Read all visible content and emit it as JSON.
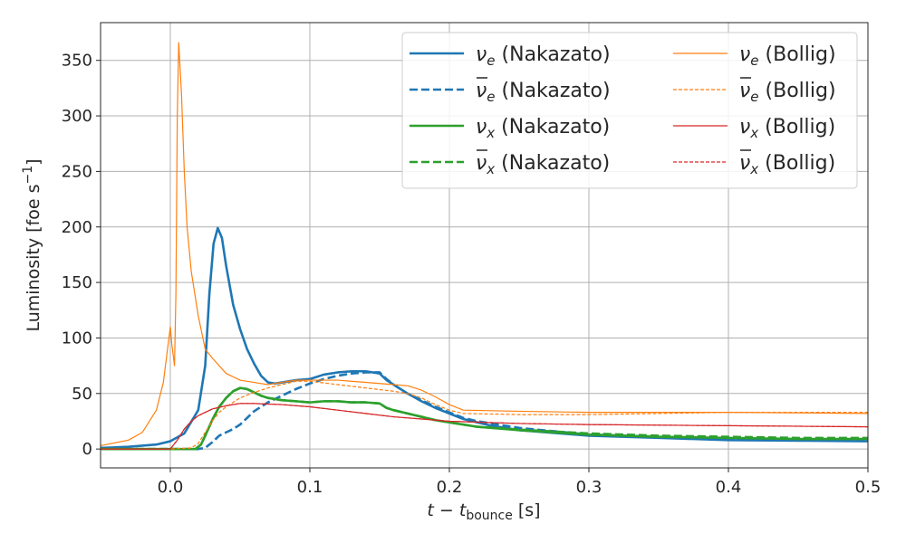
{
  "chart_data": {
    "type": "line",
    "title": "",
    "xlabel": "t - t_bounce [s]",
    "xlabel_main": "t − t",
    "xlabel_sub": "bounce",
    "xlabel_unit": " [s]",
    "ylabel": "Luminosity [foe s^-1]",
    "ylabel_main": "Luminosity [foe s",
    "ylabel_sup": "−1",
    "ylabel_end": "]",
    "xlim": [
      -0.05,
      0.5
    ],
    "ylim": [
      -17,
      384
    ],
    "xticks": [
      0.0,
      0.1,
      0.2,
      0.3,
      0.4,
      0.5
    ],
    "xtick_labels": [
      "0.0",
      "0.1",
      "0.2",
      "0.3",
      "0.4",
      "0.5"
    ],
    "yticks": [
      0,
      50,
      100,
      150,
      200,
      250,
      300,
      350
    ],
    "ytick_labels": [
      "0",
      "50",
      "100",
      "150",
      "200",
      "250",
      "300",
      "350"
    ],
    "grid": true,
    "legend_placement": "top-right",
    "legend_columns": 2,
    "series": [
      {
        "name": "νe (Nakazato)",
        "symbol": "ν",
        "subscript": "e",
        "bar": false,
        "model": "(Nakazato)",
        "color": "#1f77b4",
        "style": "solid",
        "weight": "thick",
        "x": [
          -0.05,
          -0.03,
          -0.01,
          0.0,
          0.01,
          0.02,
          0.025,
          0.028,
          0.031,
          0.034,
          0.037,
          0.04,
          0.045,
          0.05,
          0.055,
          0.06,
          0.065,
          0.07,
          0.075,
          0.08,
          0.09,
          0.1,
          0.11,
          0.12,
          0.13,
          0.14,
          0.15,
          0.155,
          0.16,
          0.17,
          0.18,
          0.19,
          0.2,
          0.21,
          0.22,
          0.23,
          0.25,
          0.3,
          0.35,
          0.4,
          0.45,
          0.5
        ],
        "y": [
          1,
          2,
          4,
          7,
          14,
          35,
          75,
          140,
          185,
          199,
          190,
          165,
          130,
          108,
          90,
          77,
          66,
          60,
          59,
          60,
          62,
          63,
          67,
          69,
          70,
          70,
          68,
          62,
          58,
          50,
          43,
          37,
          32,
          27,
          24,
          21,
          17,
          12,
          10,
          8,
          7.5,
          7
        ]
      },
      {
        "name": "ν̄e (Nakazato)",
        "symbol": "ν",
        "subscript": "e",
        "bar": true,
        "model": "(Nakazato)",
        "color": "#1f77b4",
        "style": "dashed",
        "weight": "thick",
        "x": [
          -0.05,
          0.0,
          0.02,
          0.025,
          0.03,
          0.035,
          0.04,
          0.045,
          0.05,
          0.06,
          0.07,
          0.08,
          0.09,
          0.1,
          0.11,
          0.12,
          0.13,
          0.14,
          0.15,
          0.155,
          0.16,
          0.17,
          0.18,
          0.19,
          0.2,
          0.21,
          0.22,
          0.23,
          0.25,
          0.3,
          0.35,
          0.4,
          0.45,
          0.5
        ],
        "y": [
          0,
          0,
          0,
          1,
          6,
          12,
          15,
          18,
          22,
          34,
          42,
          48,
          54,
          59,
          63,
          66,
          68,
          69,
          69,
          63,
          58,
          50,
          44,
          38,
          33,
          28,
          25,
          23,
          19,
          13,
          11,
          9,
          8.5,
          8
        ]
      },
      {
        "name": "νx (Nakazato)",
        "symbol": "ν",
        "subscript": "x",
        "bar": false,
        "model": "(Nakazato)",
        "color": "#2ca02c",
        "style": "solid",
        "weight": "thick",
        "x": [
          -0.05,
          0.0,
          0.018,
          0.022,
          0.025,
          0.03,
          0.035,
          0.04,
          0.045,
          0.05,
          0.055,
          0.06,
          0.065,
          0.07,
          0.08,
          0.09,
          0.1,
          0.11,
          0.12,
          0.13,
          0.14,
          0.15,
          0.155,
          0.16,
          0.17,
          0.18,
          0.19,
          0.2,
          0.22,
          0.25,
          0.3,
          0.35,
          0.4,
          0.45,
          0.5
        ],
        "y": [
          0,
          0,
          0,
          4,
          12,
          26,
          38,
          46,
          52,
          55,
          54,
          51,
          48,
          46,
          44,
          43,
          42,
          43,
          43,
          42,
          42,
          41,
          37,
          35,
          32,
          29,
          26,
          24,
          20,
          17,
          13,
          11,
          10,
          9,
          9
        ]
      },
      {
        "name": "ν̄x (Nakazato)",
        "symbol": "ν",
        "subscript": "x",
        "bar": true,
        "model": "(Nakazato)",
        "color": "#2ca02c",
        "style": "dashed",
        "weight": "thick",
        "x": [
          -0.05,
          0.0,
          0.018,
          0.022,
          0.025,
          0.03,
          0.035,
          0.04,
          0.045,
          0.05,
          0.055,
          0.06,
          0.065,
          0.07,
          0.08,
          0.09,
          0.1,
          0.11,
          0.12,
          0.13,
          0.14,
          0.15,
          0.155,
          0.16,
          0.17,
          0.18,
          0.19,
          0.2,
          0.22,
          0.25,
          0.3,
          0.35,
          0.4,
          0.45,
          0.5
        ],
        "y": [
          0,
          0,
          0,
          4,
          12,
          26,
          38,
          46,
          52,
          55,
          54,
          51,
          48,
          46,
          44,
          43,
          42,
          43,
          43,
          42,
          42,
          41,
          37,
          35,
          32,
          29,
          26,
          24,
          20,
          17.5,
          14,
          12,
          11,
          10,
          10
        ]
      },
      {
        "name": "νe (Bollig)",
        "symbol": "ν",
        "subscript": "e",
        "bar": false,
        "model": "(Bollig)",
        "color": "#ff7f0e",
        "style": "solid",
        "weight": "thin",
        "x": [
          -0.05,
          -0.03,
          -0.02,
          -0.01,
          -0.005,
          -0.002,
          0.0,
          0.001,
          0.003,
          0.004,
          0.005,
          0.006,
          0.008,
          0.01,
          0.012,
          0.015,
          0.02,
          0.025,
          0.03,
          0.035,
          0.04,
          0.045,
          0.05,
          0.06,
          0.07,
          0.08,
          0.09,
          0.1,
          0.12,
          0.14,
          0.16,
          0.17,
          0.18,
          0.19,
          0.2,
          0.21,
          0.25,
          0.3,
          0.4,
          0.5
        ],
        "y": [
          3,
          8,
          15,
          35,
          60,
          90,
          110,
          95,
          75,
          140,
          300,
          366,
          320,
          250,
          200,
          160,
          120,
          90,
          82,
          75,
          68,
          65,
          62,
          60,
          58,
          60,
          62,
          62,
          62,
          60,
          58,
          57,
          53,
          47,
          40,
          35,
          34,
          33,
          33,
          32
        ]
      },
      {
        "name": "ν̄e (Bollig)",
        "symbol": "ν",
        "subscript": "e",
        "bar": true,
        "model": "(Bollig)",
        "color": "#ff7f0e",
        "style": "dashed",
        "weight": "thin",
        "x": [
          -0.05,
          0.0,
          0.015,
          0.02,
          0.025,
          0.03,
          0.035,
          0.04,
          0.045,
          0.05,
          0.06,
          0.07,
          0.08,
          0.09,
          0.1,
          0.12,
          0.14,
          0.16,
          0.17,
          0.18,
          0.19,
          0.2,
          0.21,
          0.25,
          0.3,
          0.4,
          0.5
        ],
        "y": [
          0,
          0,
          1,
          5,
          15,
          25,
          33,
          38,
          42,
          46,
          51,
          55,
          58,
          61,
          61,
          58,
          55,
          52,
          50,
          46,
          40,
          35,
          32,
          31,
          31,
          33,
          33
        ]
      },
      {
        "name": "νx (Bollig)",
        "symbol": "ν",
        "subscript": "x",
        "bar": false,
        "model": "(Bollig)",
        "color": "#d62728",
        "style": "solid",
        "weight": "thin",
        "x": [
          -0.05,
          0.0,
          0.005,
          0.01,
          0.015,
          0.02,
          0.03,
          0.04,
          0.05,
          0.06,
          0.08,
          0.1,
          0.12,
          0.14,
          0.16,
          0.18,
          0.2,
          0.25,
          0.3,
          0.4,
          0.5
        ],
        "y": [
          0,
          0,
          8,
          18,
          25,
          30,
          36,
          39,
          41,
          41,
          40,
          38,
          35,
          32,
          29,
          27,
          25,
          23,
          22,
          21,
          20
        ]
      },
      {
        "name": "ν̄x (Bollig)",
        "symbol": "ν",
        "subscript": "x",
        "bar": true,
        "model": "(Bollig)",
        "color": "#d62728",
        "style": "dashed",
        "weight": "thin",
        "x": [
          -0.05,
          0.0,
          0.005,
          0.01,
          0.015,
          0.02,
          0.03,
          0.04,
          0.05,
          0.06,
          0.08,
          0.1,
          0.12,
          0.14,
          0.16,
          0.18,
          0.2,
          0.25,
          0.3,
          0.4,
          0.5
        ],
        "y": [
          0,
          0,
          8,
          18,
          25,
          30,
          36,
          39,
          41,
          41,
          40,
          38,
          35,
          32,
          29,
          27,
          25,
          23,
          22,
          21,
          20
        ]
      }
    ]
  }
}
